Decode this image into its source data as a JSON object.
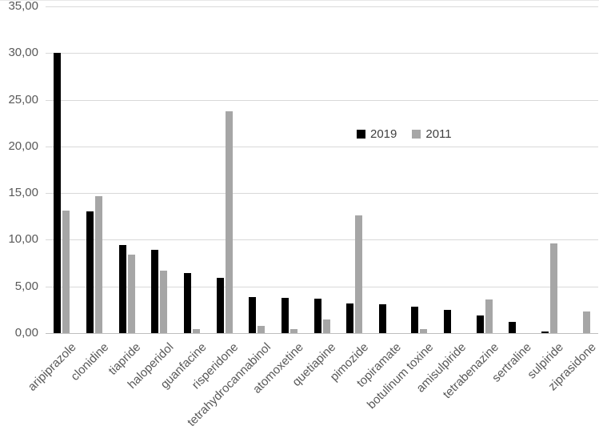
{
  "chart_data": {
    "type": "bar",
    "title": "",
    "xlabel": "",
    "ylabel": "",
    "categories": [
      "aripiprazole",
      "clonidine",
      "tiapride",
      "haloperidol",
      "guanfacine",
      "risperidone",
      "tetrahydrocannabinol",
      "atomoxetine",
      "quetiapine",
      "pimozide",
      "topiramate",
      "botulinum toxine",
      "amisulpiride",
      "tetrabenazine",
      "sertraline",
      "sulpiride",
      "ziprasidone"
    ],
    "series": [
      {
        "name": "2019",
        "color": "#000000",
        "values": [
          30.0,
          13.0,
          9.4,
          8.9,
          6.4,
          5.9,
          3.9,
          3.8,
          3.7,
          3.2,
          3.1,
          2.8,
          2.5,
          1.9,
          1.2,
          0.2,
          0
        ]
      },
      {
        "name": "2011",
        "color": "#a6a6a6",
        "values": [
          13.1,
          14.7,
          8.4,
          6.7,
          0.4,
          23.8,
          0.8,
          0.4,
          1.5,
          12.6,
          0,
          0.4,
          0,
          3.6,
          0,
          9.6,
          2.3
        ]
      }
    ],
    "ylim": [
      0,
      35
    ],
    "ytick_step": 5,
    "ytick_labels": [
      "0,00",
      "5,00",
      "10,00",
      "15,00",
      "20,00",
      "25,00",
      "30,00",
      "35,00"
    ],
    "decimal_separator": ",",
    "grid": true,
    "gridline_color": "#d9d9d9",
    "axis_line_color": "#bfbfbf",
    "text_color": "#595959",
    "legend_position": "inside-upper-right",
    "x_label_rotation_deg": 45
  }
}
